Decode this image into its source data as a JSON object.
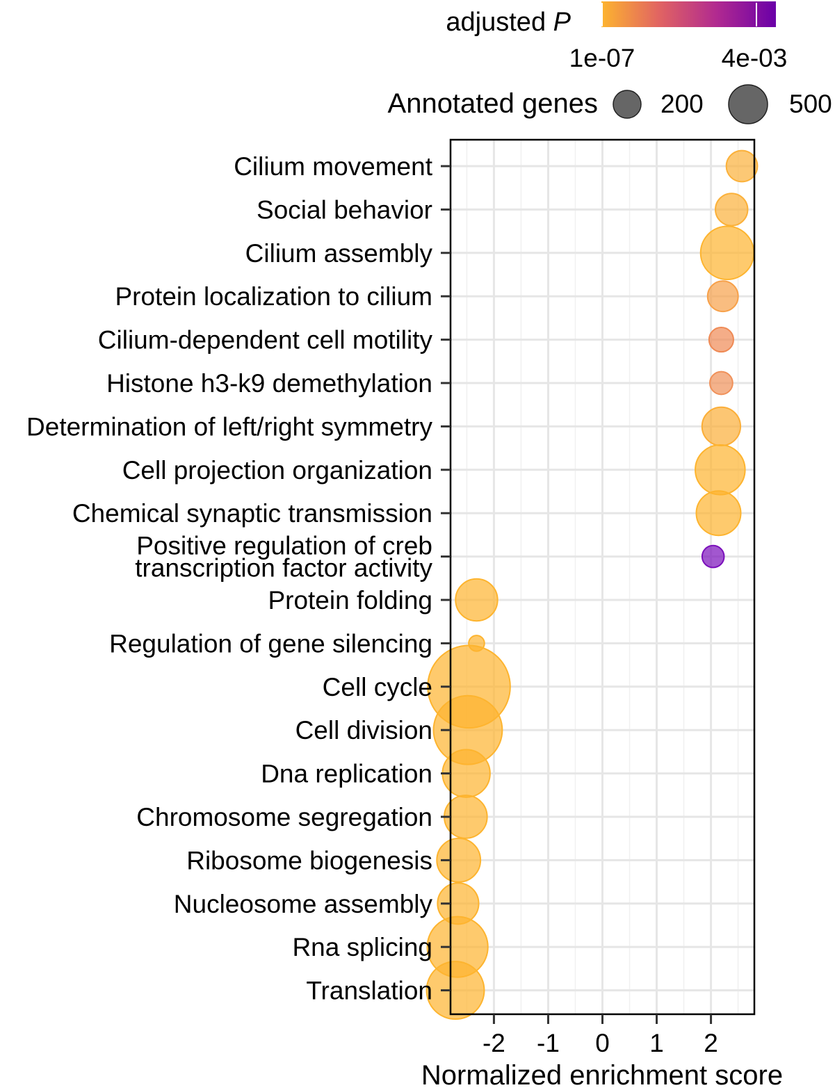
{
  "chart_data": {
    "type": "scatter",
    "xlabel": "Normalized enrichment score",
    "xlim": [
      -2.8,
      2.8
    ],
    "xticks": [
      "-2",
      "-1",
      "0",
      "1",
      "2"
    ],
    "xtick_values": [
      -2,
      -1,
      0,
      1,
      2
    ],
    "grid": true,
    "legend": {
      "color": {
        "title": "adjusted",
        "title_italic": "P",
        "labels": [
          "1e-07",
          "4e-03"
        ],
        "colors": [
          "#fdb42f",
          "#e16462",
          "#b12a90",
          "#6a00a8"
        ]
      },
      "size": {
        "title": "Annotated genes",
        "labels": [
          "200",
          "500"
        ],
        "values": [
          200,
          500
        ]
      },
      "placement": "top"
    },
    "categories": [
      "Cilium movement",
      "Social behavior",
      "Cilium assembly",
      "Protein localization to cilium",
      "Cilium-dependent cell motility",
      "Histone h3-k9 demethylation",
      "Determination of left/right symmetry",
      "Cell projection organization",
      "Chemical synaptic transmission",
      "Positive regulation of creb\ntranscription factor activity",
      "Protein folding",
      "Regulation of gene silencing",
      "Cell cycle",
      "Cell division",
      "Dna replication",
      "Chromosome segregation",
      "Ribosome biogenesis",
      "Nucleosome assembly",
      "Rna splicing",
      "Translation"
    ],
    "points": [
      {
        "category": "Cilium movement",
        "x": 2.57,
        "genes": 120,
        "color": "#fbb13a"
      },
      {
        "category": "Social behavior",
        "x": 2.38,
        "genes": 130,
        "color": "#fbb13a"
      },
      {
        "category": "Cilium assembly",
        "x": 2.3,
        "genes": 380,
        "color": "#fdb42f"
      },
      {
        "category": "Protein localization to cilium",
        "x": 2.22,
        "genes": 115,
        "color": "#f7a14a"
      },
      {
        "category": "Cilium-dependent cell motility",
        "x": 2.19,
        "genes": 70,
        "color": "#ef8a55"
      },
      {
        "category": "Histone h3-k9 demethylation",
        "x": 2.19,
        "genes": 60,
        "color": "#f0915a"
      },
      {
        "category": "Determination of left/right symmetry",
        "x": 2.19,
        "genes": 190,
        "color": "#fbae38"
      },
      {
        "category": "Cell projection organization",
        "x": 2.17,
        "genes": 330,
        "color": "#fdb42f"
      },
      {
        "category": "Chemical synaptic transmission",
        "x": 2.14,
        "genes": 260,
        "color": "#fdb42f"
      },
      {
        "category": "Positive regulation of creb\ntranscription factor activity",
        "x": 2.04,
        "genes": 55,
        "color": "#7b10bb"
      },
      {
        "category": "Protein folding",
        "x": -2.32,
        "genes": 230,
        "color": "#fdb42f"
      },
      {
        "category": "Regulation of gene silencing",
        "x": -2.32,
        "genes": 25,
        "color": "#fdb42f"
      },
      {
        "category": "Cell cycle",
        "x": -2.46,
        "genes": 950,
        "color": "#fdb42f"
      },
      {
        "category": "Cell division",
        "x": -2.48,
        "genes": 650,
        "color": "#fdb42f"
      },
      {
        "category": "Dna replication",
        "x": -2.51,
        "genes": 300,
        "color": "#fdb42f"
      },
      {
        "category": "Chromosome segregation",
        "x": -2.52,
        "genes": 240,
        "color": "#fdb42f"
      },
      {
        "category": "Ribosome biogenesis",
        "x": -2.65,
        "genes": 250,
        "color": "#fdb42f"
      },
      {
        "category": "Nucleosome assembly",
        "x": -2.66,
        "genes": 220,
        "color": "#fdb42f"
      },
      {
        "category": "Rna splicing",
        "x": -2.67,
        "genes": 500,
        "color": "#fdb42f"
      },
      {
        "category": "Translation",
        "x": -2.71,
        "genes": 450,
        "color": "#fdb42f"
      }
    ]
  }
}
